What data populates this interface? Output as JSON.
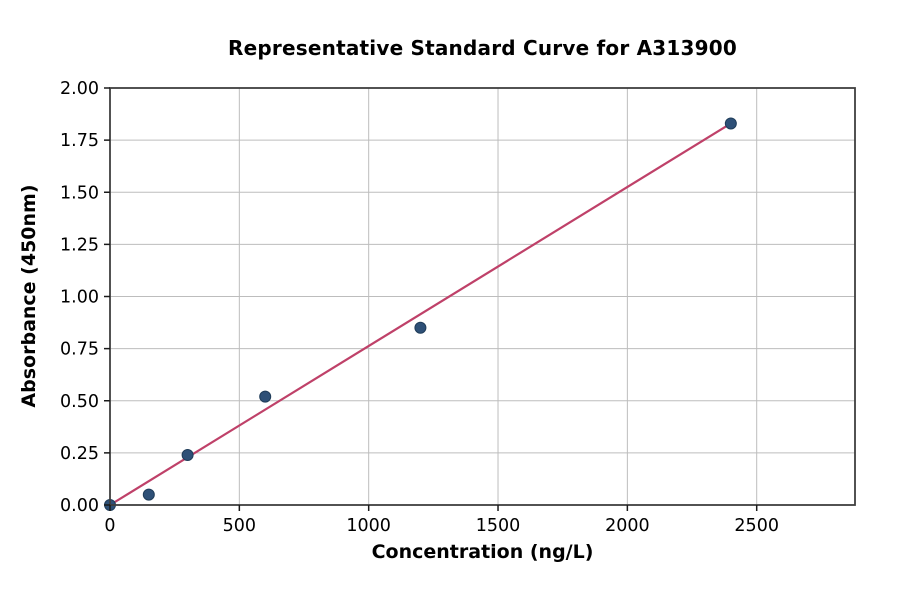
{
  "figure": {
    "background": "#ffffff"
  },
  "chart_data": {
    "type": "scatter",
    "title": "Representative Standard Curve for A313900",
    "xlabel": "Concentration (ng/L)",
    "ylabel": "Absorbance (450nm)",
    "xlim": [
      0,
      2880
    ],
    "ylim": [
      0,
      2.0
    ],
    "x_ticks": [
      0,
      500,
      1000,
      1500,
      2000,
      2500
    ],
    "x_tick_labels": [
      "0",
      "500",
      "1000",
      "1500",
      "2000",
      "2500"
    ],
    "y_ticks": [
      0,
      0.25,
      0.5,
      0.75,
      1.0,
      1.25,
      1.5,
      1.75,
      2.0
    ],
    "y_tick_labels": [
      "0.00",
      "0.25",
      "0.50",
      "0.75",
      "1.00",
      "1.25",
      "1.50",
      "1.75",
      "2.00"
    ],
    "grid": true,
    "legend_position": "none",
    "series": [
      {
        "name": "standard-points",
        "type": "scatter",
        "x": [
          0,
          150,
          300,
          600,
          1200,
          2400
        ],
        "y": [
          0.0,
          0.05,
          0.24,
          0.52,
          0.85,
          1.83
        ]
      },
      {
        "name": "linear-fit",
        "type": "line",
        "x": [
          0,
          2400
        ],
        "y": [
          0.0,
          1.83
        ]
      }
    ],
    "colors": {
      "point_fill": "#2e5077",
      "point_edge": "#1f3c59",
      "fit_line": "#bf4169",
      "grid": "#bdbdbd",
      "spine": "#3f3f3f",
      "tick": "#1a1a1a",
      "text": "#000000"
    }
  }
}
